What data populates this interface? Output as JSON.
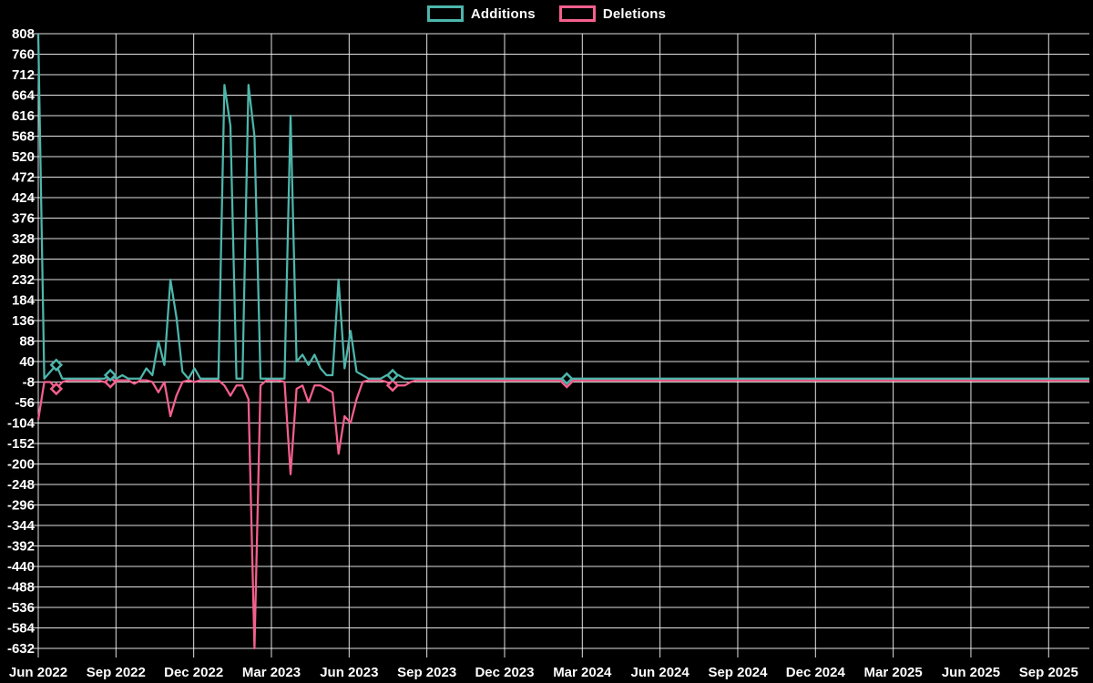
{
  "legend": {
    "items": [
      {
        "label": "Additions",
        "color": "#4db6ac"
      },
      {
        "label": "Deletions",
        "color": "#f4608d"
      }
    ]
  },
  "chart_data": {
    "type": "line",
    "background_color": "#000000",
    "gridline_color": "#f5f5f5",
    "axis_label_color": "#ffffff",
    "legend_position": "top-center",
    "grid": true,
    "x": {
      "tick_labels": [
        "Jun 2022",
        "Sep 2022",
        "Dec 2022",
        "Mar 2023",
        "Jun 2023",
        "Sep 2023",
        "Dec 2023",
        "Mar 2024",
        "Jun 2024",
        "Sep 2024",
        "Dec 2024",
        "Mar 2025",
        "Jun 2025",
        "Sep 2025"
      ],
      "unit": "week",
      "weeks": 176,
      "weeks_per_quarter": 13
    },
    "y": {
      "min": -632,
      "max": 808,
      "step": 48
    },
    "series": [
      {
        "name": "Additions",
        "color": "#4db6ac",
        "default_value": 0,
        "points_by_week": {
          "0": 808,
          "2": 16,
          "3": 32,
          "12": 8,
          "14": 8,
          "18": 24,
          "19": 8,
          "20": 88,
          "21": 32,
          "22": 232,
          "23": 144,
          "24": 16,
          "26": 24,
          "31": 688,
          "32": 592,
          "35": 688,
          "36": 568,
          "42": 616,
          "43": 40,
          "44": 56,
          "45": 32,
          "46": 56,
          "47": 24,
          "48": 8,
          "49": 8,
          "50": 232,
          "51": 24,
          "52": 112,
          "53": 16,
          "54": 8,
          "58": 8,
          "59": 8,
          "60": 8,
          "88": 0
        }
      },
      {
        "name": "Deletions",
        "color": "#f4608d",
        "default_value": -4,
        "points_by_week": {
          "0": -96,
          "1": -8,
          "2": -8,
          "3": -24,
          "4": -8,
          "11": -8,
          "12": -8,
          "16": -12,
          "19": -8,
          "20": -32,
          "21": -8,
          "22": -88,
          "23": -40,
          "24": -8,
          "26": -8,
          "31": -16,
          "32": -40,
          "33": -16,
          "34": -16,
          "35": -48,
          "36": -632,
          "37": -16,
          "41": -8,
          "42": -224,
          "43": -24,
          "44": -16,
          "45": -56,
          "46": -16,
          "47": -16,
          "48": -24,
          "49": -32,
          "50": -176,
          "51": -88,
          "52": -104,
          "53": -48,
          "54": -8,
          "58": -8,
          "59": -16,
          "60": -16,
          "61": -16,
          "62": -8,
          "88": -8
        }
      }
    ],
    "markers": [
      {
        "series": "Deletions",
        "week": 3,
        "value": -24
      },
      {
        "series": "Additions",
        "week": 3,
        "value": 32
      },
      {
        "series": "Deletions",
        "week": 12,
        "value": -8
      },
      {
        "series": "Additions",
        "week": 12,
        "value": 8
      },
      {
        "series": "Deletions",
        "week": 59,
        "value": -16
      },
      {
        "series": "Additions",
        "week": 59,
        "value": 8
      },
      {
        "series": "Deletions",
        "week": 88,
        "value": -8
      },
      {
        "series": "Additions",
        "week": 88,
        "value": 0
      }
    ]
  }
}
